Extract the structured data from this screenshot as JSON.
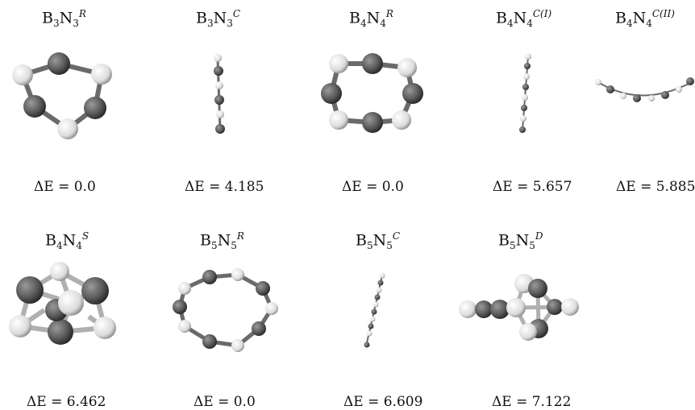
{
  "structures": [
    {
      "id": "b3n3r",
      "label": {
        "b": "B",
        "bn": "3",
        "n": "N",
        "nn": "3",
        "sup": "R"
      },
      "energy_text": "ΔE = 0.0"
    },
    {
      "id": "b3n3c",
      "label": {
        "b": "B",
        "bn": "3",
        "n": "N",
        "nn": "3",
        "sup": "C"
      },
      "energy_text": "ΔE = 4.185"
    },
    {
      "id": "b4n4r",
      "label": {
        "b": "B",
        "bn": "4",
        "n": "N",
        "nn": "4",
        "sup": "R"
      },
      "energy_text": "ΔE = 0.0"
    },
    {
      "id": "b4n4c1",
      "label": {
        "b": "B",
        "bn": "4",
        "n": "N",
        "nn": "4",
        "sup": "C(I)"
      },
      "energy_text": "ΔE = 5.657"
    },
    {
      "id": "b4n4c2",
      "label": {
        "b": "B",
        "bn": "4",
        "n": "N",
        "nn": "4",
        "sup": "C(II)"
      },
      "energy_text": "ΔE = 5.885"
    },
    {
      "id": "b4n4s",
      "label": {
        "b": "B",
        "bn": "4",
        "n": "N",
        "nn": "4",
        "sup": "S"
      },
      "energy_text": "ΔE = 6.462"
    },
    {
      "id": "b5n5r",
      "label": {
        "b": "B",
        "bn": "5",
        "n": "N",
        "nn": "5",
        "sup": "R"
      },
      "energy_text": "ΔE = 0.0"
    },
    {
      "id": "b5n5c",
      "label": {
        "b": "B",
        "bn": "5",
        "n": "N",
        "nn": "5",
        "sup": "C"
      },
      "energy_text": "ΔE = 6.609"
    },
    {
      "id": "b5n5d",
      "label": {
        "b": "B",
        "bn": "5",
        "n": "N",
        "nn": "5",
        "sup": "D"
      },
      "energy_text": "ΔE = 7.122"
    }
  ],
  "colors": {
    "boron_atom": "#e6e6e6",
    "nitrogen_atom": "#5a5a5a",
    "bond": "#6a6a6a"
  }
}
